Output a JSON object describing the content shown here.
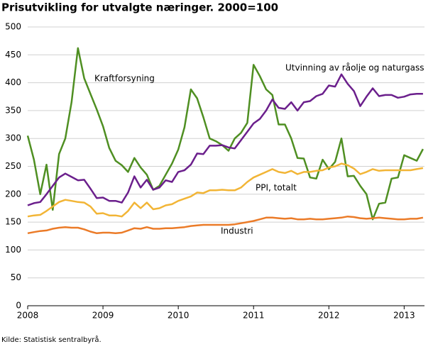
{
  "chart_data": {
    "type": "line",
    "title": "Prisutvikling for utvalgte næringer. 2000=100",
    "source": "Kilde: Statistisk sentralbyrå.",
    "x": [
      2008,
      2008.083,
      2008.167,
      2008.25,
      2008.333,
      2008.417,
      2008.5,
      2008.583,
      2008.667,
      2008.75,
      2008.833,
      2008.917,
      2009,
      2009.083,
      2009.167,
      2009.25,
      2009.333,
      2009.417,
      2009.5,
      2009.583,
      2009.667,
      2009.75,
      2009.833,
      2009.917,
      2010,
      2010.083,
      2010.167,
      2010.25,
      2010.333,
      2010.417,
      2010.5,
      2010.583,
      2010.667,
      2010.75,
      2010.833,
      2010.917,
      2011,
      2011.083,
      2011.167,
      2011.25,
      2011.333,
      2011.417,
      2011.5,
      2011.583,
      2011.667,
      2011.75,
      2011.833,
      2011.917,
      2012,
      2012.083,
      2012.167,
      2012.25,
      2012.333,
      2012.417,
      2012.5,
      2012.583,
      2012.667,
      2012.75,
      2012.833,
      2012.917,
      2013,
      2013.083,
      2013.167,
      2013.25
    ],
    "series": [
      {
        "name": "Kraftforsyning",
        "color": "#4f8f22",
        "values": [
          305,
          262,
          200,
          253,
          172,
          272,
          300,
          365,
          462,
          408,
          380,
          352,
          322,
          283,
          260,
          252,
          240,
          265,
          248,
          235,
          208,
          215,
          235,
          255,
          280,
          320,
          388,
          372,
          338,
          300,
          295,
          288,
          278,
          300,
          310,
          328,
          432,
          412,
          388,
          378,
          325,
          325,
          300,
          265,
          264,
          230,
          228,
          262,
          245,
          258,
          300,
          232,
          233,
          215,
          200,
          155,
          183,
          185,
          228,
          230,
          270,
          265,
          260,
          281
        ]
      },
      {
        "name": "Utvinning av råolje og naturgass",
        "color": "#6b1f8c",
        "values": [
          180,
          184,
          186,
          200,
          215,
          230,
          237,
          231,
          225,
          226,
          210,
          193,
          194,
          188,
          188,
          185,
          203,
          232,
          212,
          226,
          208,
          212,
          225,
          222,
          240,
          243,
          253,
          273,
          272,
          287,
          287,
          288,
          284,
          282,
          297,
          312,
          327,
          335,
          350,
          370,
          355,
          353,
          365,
          350,
          365,
          367,
          376,
          380,
          395,
          393,
          415,
          398,
          385,
          358,
          375,
          390,
          376,
          378,
          378,
          373,
          375,
          379,
          380,
          380
        ]
      },
      {
        "name": "PPI, totalt",
        "color": "#f2b536",
        "values": [
          160,
          162,
          163,
          170,
          178,
          186,
          190,
          188,
          186,
          185,
          178,
          165,
          166,
          162,
          162,
          160,
          170,
          185,
          175,
          185,
          173,
          175,
          180,
          182,
          188,
          192,
          196,
          203,
          202,
          207,
          207,
          208,
          207,
          207,
          212,
          222,
          230,
          235,
          240,
          245,
          240,
          238,
          242,
          236,
          240,
          240,
          242,
          243,
          248,
          250,
          255,
          252,
          246,
          236,
          240,
          245,
          242,
          243,
          243,
          243,
          243,
          243,
          245,
          247
        ]
      },
      {
        "name": "Industri",
        "color": "#eb7b28",
        "values": [
          130,
          132,
          134,
          135,
          138,
          140,
          141,
          140,
          140,
          137,
          133,
          130,
          131,
          131,
          130,
          131,
          135,
          139,
          138,
          141,
          138,
          138,
          139,
          139,
          140,
          141,
          143,
          144,
          145,
          145,
          145,
          145,
          145,
          146,
          148,
          150,
          152,
          155,
          158,
          158,
          157,
          156,
          157,
          155,
          155,
          156,
          155,
          155,
          156,
          157,
          158,
          160,
          159,
          157,
          156,
          157,
          158,
          157,
          156,
          155,
          155,
          156,
          156,
          158
        ]
      }
    ],
    "xlim": [
      2008,
      2013.27
    ],
    "xticks": [
      2008,
      2009,
      2010,
      2011,
      2012,
      2013
    ],
    "ylim": [
      0,
      500
    ],
    "yticks": [
      0,
      50,
      100,
      150,
      200,
      250,
      300,
      350,
      400,
      450,
      500
    ],
    "grid": true
  }
}
